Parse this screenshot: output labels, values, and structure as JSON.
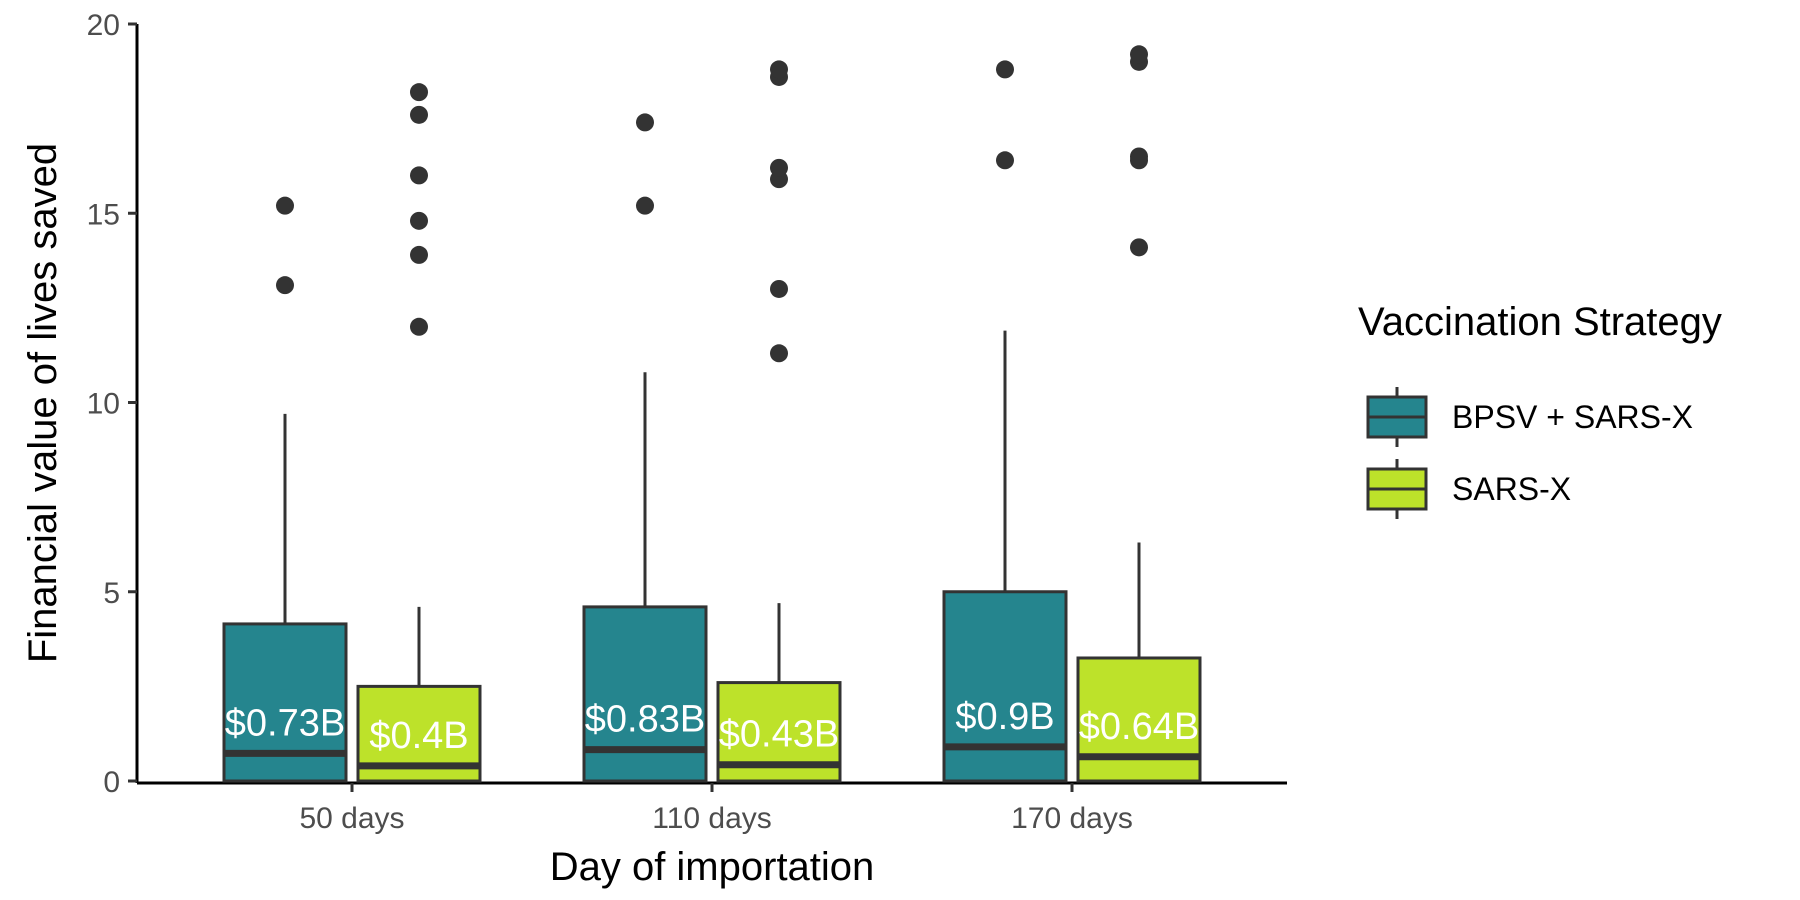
{
  "chart_data": {
    "type": "boxplot",
    "xlabel": "Day of importation",
    "ylabel": "Financial value of lives saved",
    "ylim": [
      0,
      20
    ],
    "yticks": [
      0,
      5,
      10,
      15,
      20
    ],
    "categories": [
      "50 days",
      "110 days",
      "170 days"
    ],
    "grid": false,
    "legend": {
      "title": "Vaccination Strategy",
      "position": "right"
    },
    "series": [
      {
        "name": "BPSV + SARS-X",
        "color": "#25858e",
        "boxes": [
          {
            "q1": 0.0,
            "median": 0.73,
            "q3": 4.15,
            "whisker_low": 0.0,
            "whisker_high": 9.7,
            "outliers": [
              13.1,
              15.2
            ],
            "label": "$0.73B"
          },
          {
            "q1": 0.0,
            "median": 0.83,
            "q3": 4.6,
            "whisker_low": 0.0,
            "whisker_high": 10.8,
            "outliers": [
              15.2,
              17.4
            ],
            "label": "$0.83B"
          },
          {
            "q1": 0.0,
            "median": 0.9,
            "q3": 5.0,
            "whisker_low": 0.0,
            "whisker_high": 11.9,
            "outliers": [
              16.4,
              18.8
            ],
            "label": "$0.9B"
          }
        ]
      },
      {
        "name": "SARS-X",
        "color": "#bde22a",
        "boxes": [
          {
            "q1": 0.0,
            "median": 0.4,
            "q3": 2.5,
            "whisker_low": 0.0,
            "whisker_high": 4.6,
            "outliers": [
              12.0,
              13.9,
              14.8,
              16.0,
              17.6,
              18.2
            ],
            "label": "$0.4B"
          },
          {
            "q1": 0.0,
            "median": 0.43,
            "q3": 2.6,
            "whisker_low": 0.0,
            "whisker_high": 4.7,
            "outliers": [
              11.3,
              13.0,
              15.9,
              16.2,
              18.6,
              18.8
            ],
            "label": "$0.43B"
          },
          {
            "q1": 0.0,
            "median": 0.64,
            "q3": 3.25,
            "whisker_low": 0.0,
            "whisker_high": 6.3,
            "outliers": [
              14.1,
              16.4,
              16.5,
              19.0,
              19.2
            ],
            "label": "$0.64B"
          }
        ]
      }
    ]
  }
}
